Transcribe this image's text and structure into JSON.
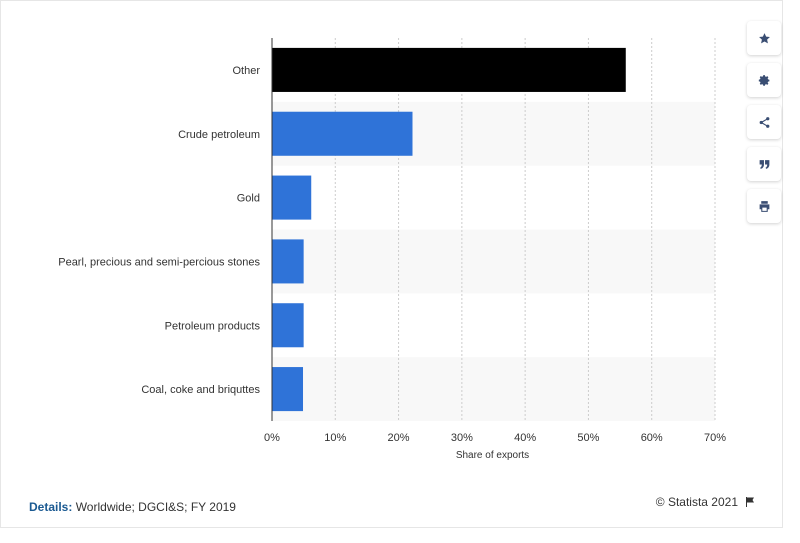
{
  "chart_data": {
    "type": "bar",
    "orientation": "horizontal",
    "categories": [
      "Other",
      "Crude petroleum",
      "Gold",
      "Pearl, precious and semi-percious stones",
      "Petroleum products",
      "Coal, coke and briquttes"
    ],
    "values": [
      55.9,
      22.2,
      6.2,
      5.0,
      5.0,
      4.9
    ],
    "bar_colors": [
      "#000000",
      "#2f73d8",
      "#2f73d8",
      "#2f73d8",
      "#2f73d8",
      "#2f73d8"
    ],
    "xlabel": "Share of exports",
    "ylabel": "",
    "xlim": [
      0,
      70
    ],
    "x_ticks": [
      0,
      10,
      20,
      30,
      40,
      50,
      60,
      70
    ],
    "x_tick_labels": [
      "0%",
      "10%",
      "20%",
      "30%",
      "40%",
      "50%",
      "60%",
      "70%"
    ],
    "grid": true,
    "legend": "none"
  },
  "toolbar": {
    "buttons": [
      {
        "name": "star-icon"
      },
      {
        "name": "gear-icon"
      },
      {
        "name": "share-icon"
      },
      {
        "name": "quote-icon"
      },
      {
        "name": "print-icon"
      }
    ]
  },
  "footer": {
    "details_label": "Details:",
    "details_text": " Worldwide; DGCI&S; FY 2019",
    "credit": "© Statista 2021",
    "flag_icon": "flag-icon"
  },
  "colors": {
    "accent": "#2f73d8",
    "highlight": "#000000",
    "stripe": "#f8f8f8",
    "grid": "#cccccc"
  }
}
